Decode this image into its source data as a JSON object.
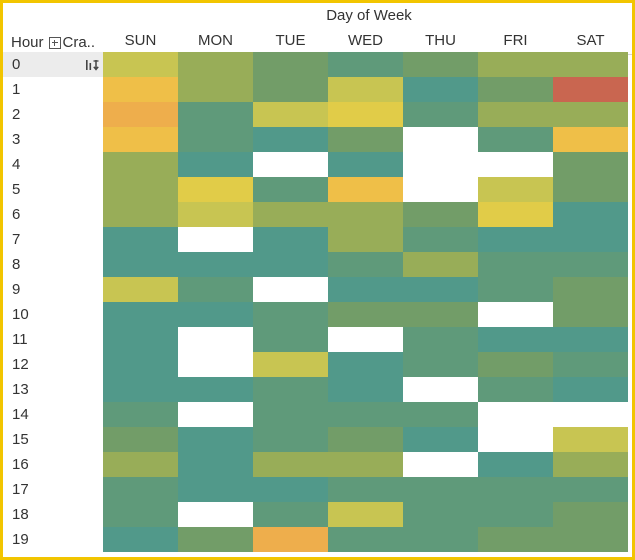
{
  "header": {
    "column_title": "Day of Week",
    "row_title": "Hour",
    "measure_label": "Cra.."
  },
  "sort_icon": "sort-descending-icon",
  "chart_data": {
    "type": "heatmap",
    "x_label": "Day of Week",
    "y_label": "Hour",
    "days": [
      "SUN",
      "MON",
      "TUE",
      "WED",
      "THU",
      "FRI",
      "SAT"
    ],
    "hours": [
      "0",
      "1",
      "2",
      "3",
      "4",
      "5",
      "6",
      "7",
      "8",
      "9",
      "10",
      "11",
      "12",
      "13",
      "14",
      "15",
      "16",
      "17",
      "18",
      "19"
    ],
    "color_levels": {
      "0": "#ffffff",
      "1": "#51998a",
      "2": "#5f9a7a",
      "3": "#729d68",
      "4": "#98ad58",
      "5": "#c8c552",
      "6": "#e1cc48",
      "7": "#efbf48",
      "8": "#eeae4c",
      "9": "#c96650"
    },
    "values": [
      [
        5,
        4,
        3,
        2,
        3,
        4,
        4
      ],
      [
        7,
        4,
        3,
        5,
        1,
        3,
        9
      ],
      [
        8,
        2,
        5,
        6,
        2,
        4,
        4
      ],
      [
        7,
        2,
        1,
        3,
        0,
        2,
        7
      ],
      [
        4,
        1,
        0,
        1,
        0,
        0,
        3
      ],
      [
        4,
        6,
        2,
        7,
        0,
        5,
        3
      ],
      [
        4,
        5,
        4,
        4,
        3,
        6,
        1
      ],
      [
        1,
        0,
        1,
        4,
        2,
        1,
        1
      ],
      [
        1,
        1,
        1,
        2,
        4,
        2,
        2
      ],
      [
        5,
        2,
        0,
        1,
        1,
        2,
        3
      ],
      [
        1,
        1,
        2,
        3,
        3,
        0,
        3
      ],
      [
        1,
        0,
        2,
        0,
        2,
        1,
        1
      ],
      [
        1,
        0,
        5,
        1,
        2,
        3,
        2
      ],
      [
        1,
        1,
        2,
        1,
        0,
        2,
        1
      ],
      [
        2,
        0,
        2,
        2,
        2,
        0,
        0
      ],
      [
        3,
        1,
        2,
        3,
        1,
        0,
        5
      ],
      [
        4,
        1,
        4,
        4,
        0,
        1,
        4
      ],
      [
        2,
        1,
        1,
        2,
        2,
        2,
        2
      ],
      [
        2,
        0,
        2,
        5,
        2,
        2,
        3
      ],
      [
        1,
        3,
        8,
        2,
        2,
        3,
        3
      ]
    ]
  }
}
